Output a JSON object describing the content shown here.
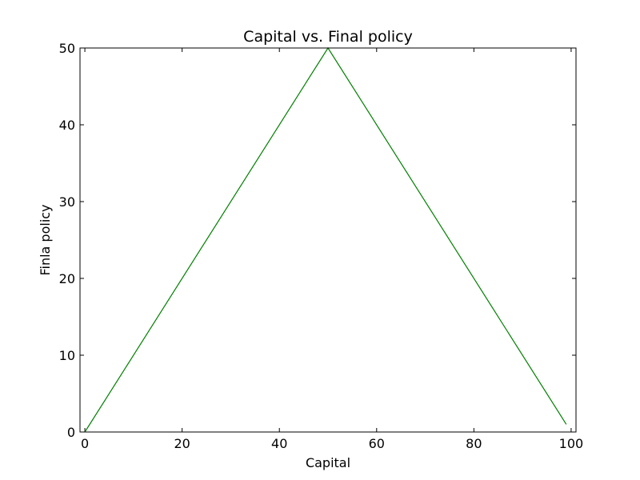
{
  "chart_data": {
    "type": "line",
    "title": "Capital vs. Final policy",
    "xlabel": "Capital",
    "ylabel": "Finla policy",
    "xlim": [
      -1,
      101
    ],
    "ylim": [
      0,
      50
    ],
    "xticks": [
      0,
      20,
      40,
      60,
      80,
      100
    ],
    "yticks": [
      0,
      10,
      20,
      30,
      40,
      50
    ],
    "xtick_labels": [
      "0",
      "20",
      "40",
      "60",
      "80",
      "100"
    ],
    "ytick_labels": [
      "0",
      "10",
      "20",
      "30",
      "40",
      "50"
    ],
    "grid": false,
    "legend": "none",
    "series": [
      {
        "color": "#008000",
        "x": [
          0,
          50,
          99
        ],
        "y": [
          0,
          50,
          1
        ]
      }
    ]
  }
}
